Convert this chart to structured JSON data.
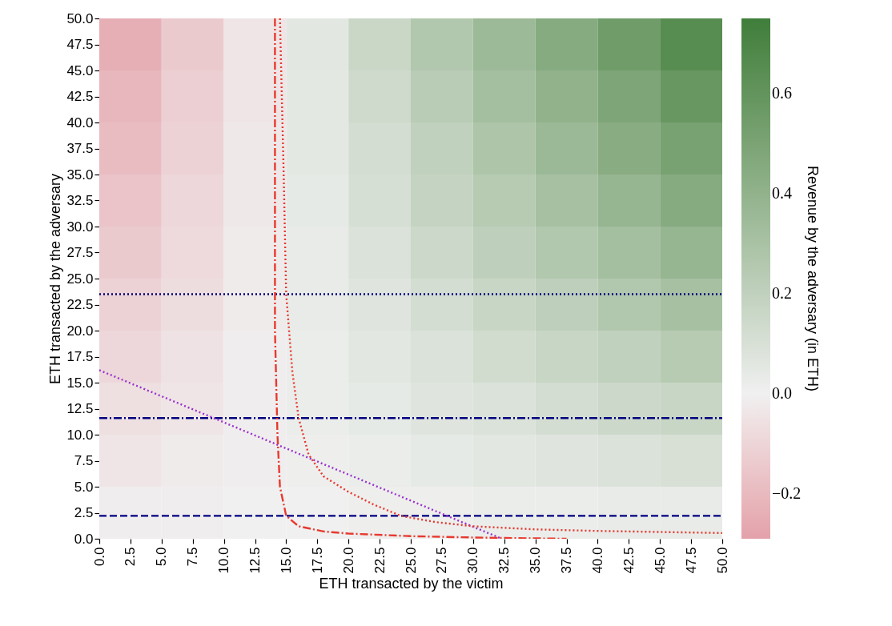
{
  "chart_data": {
    "type": "heatmap",
    "xlabel": "ETH transacted by the victim",
    "ylabel": "ETH transacted by the adversary",
    "clabel": "Revenue by the adversary (in ETH)",
    "xlim": [
      0,
      50
    ],
    "ylim": [
      0,
      50
    ],
    "xticks": [
      {
        "value": 0,
        "label": "0.0"
      },
      {
        "value": 2.5,
        "label": "2.5"
      },
      {
        "value": 5,
        "label": "5.0"
      },
      {
        "value": 7.5,
        "label": "7.5"
      },
      {
        "value": 10,
        "label": "10.0"
      },
      {
        "value": 12.5,
        "label": "12.5"
      },
      {
        "value": 15,
        "label": "15.0"
      },
      {
        "value": 17.5,
        "label": "17.5"
      },
      {
        "value": 20,
        "label": "20.0"
      },
      {
        "value": 22.5,
        "label": "22.5"
      },
      {
        "value": 25,
        "label": "25.0"
      },
      {
        "value": 27.5,
        "label": "27.5"
      },
      {
        "value": 30,
        "label": "30.0"
      },
      {
        "value": 32.5,
        "label": "32.5"
      },
      {
        "value": 35,
        "label": "35.0"
      },
      {
        "value": 37.5,
        "label": "37.5"
      },
      {
        "value": 40,
        "label": "40.0"
      },
      {
        "value": 42.5,
        "label": "42.5"
      },
      {
        "value": 45,
        "label": "45.0"
      },
      {
        "value": 47.5,
        "label": "47.5"
      },
      {
        "value": 50,
        "label": "50.0"
      }
    ],
    "yticks": [
      {
        "value": 0,
        "label": "0.0"
      },
      {
        "value": 2.5,
        "label": "2.5"
      },
      {
        "value": 5,
        "label": "5.0"
      },
      {
        "value": 7.5,
        "label": "7.5"
      },
      {
        "value": 10,
        "label": "10.0"
      },
      {
        "value": 12.5,
        "label": "12.5"
      },
      {
        "value": 15,
        "label": "15.0"
      },
      {
        "value": 17.5,
        "label": "17.5"
      },
      {
        "value": 20,
        "label": "20.0"
      },
      {
        "value": 22.5,
        "label": "22.5"
      },
      {
        "value": 25,
        "label": "25.0"
      },
      {
        "value": 27.5,
        "label": "27.5"
      },
      {
        "value": 30,
        "label": "30.0"
      },
      {
        "value": 32.5,
        "label": "32.5"
      },
      {
        "value": 35,
        "label": "35.0"
      },
      {
        "value": 37.5,
        "label": "37.5"
      },
      {
        "value": 40,
        "label": "40.0"
      },
      {
        "value": 42.5,
        "label": "42.5"
      },
      {
        "value": 45,
        "label": "45.0"
      },
      {
        "value": 47.5,
        "label": "47.5"
      },
      {
        "value": 50,
        "label": "50.0"
      }
    ],
    "clim": [
      -0.29,
      0.75
    ],
    "cticks": [
      {
        "value": -0.2,
        "label": "−0.2"
      },
      {
        "value": 0,
        "label": "0.0"
      },
      {
        "value": 0.2,
        "label": "0.2"
      },
      {
        "value": 0.4,
        "label": "0.4"
      },
      {
        "value": 0.6,
        "label": "0.6"
      }
    ],
    "colors": [
      "#e3a1aa",
      "#f0f0f0",
      "#3f7e3b"
    ],
    "x": [
      2.5,
      7.5,
      12.5,
      17.5,
      22.5,
      27.5,
      32.5,
      37.5,
      42.5,
      47.5
    ],
    "y": [
      47.5,
      42.5,
      37.5,
      32.5,
      27.5,
      22.5,
      17.5,
      12.5,
      7.5,
      2.5
    ],
    "cells": [
      [
        -0.24,
        -0.14,
        -0.04,
        0.06,
        0.16,
        0.26,
        0.35,
        0.45,
        0.55,
        0.65
      ],
      [
        -0.21,
        -0.12,
        -0.04,
        0.05,
        0.14,
        0.23,
        0.32,
        0.4,
        0.49,
        0.58
      ],
      [
        -0.19,
        -0.11,
        -0.03,
        0.05,
        0.12,
        0.2,
        0.28,
        0.36,
        0.44,
        0.51
      ],
      [
        -0.16,
        -0.09,
        -0.03,
        0.04,
        0.11,
        0.18,
        0.24,
        0.31,
        0.38,
        0.45
      ],
      [
        -0.14,
        -0.08,
        -0.02,
        0.03,
        0.09,
        0.15,
        0.21,
        0.26,
        0.32,
        0.38
      ],
      [
        -0.11,
        -0.07,
        -0.02,
        0.03,
        0.07,
        0.12,
        0.17,
        0.21,
        0.26,
        0.31
      ],
      [
        -0.09,
        -0.05,
        -0.01,
        0.02,
        0.06,
        0.09,
        0.13,
        0.17,
        0.2,
        0.24
      ],
      [
        -0.06,
        -0.04,
        -0.01,
        0.02,
        0.04,
        0.07,
        0.09,
        0.12,
        0.15,
        0.17
      ],
      [
        -0.04,
        -0.02,
        -0.01,
        0.01,
        0.02,
        0.04,
        0.06,
        0.07,
        0.09,
        0.1
      ],
      [
        -0.01,
        -0.01,
        0.0,
        0.0,
        0.01,
        0.01,
        0.02,
        0.02,
        0.03,
        0.03
      ]
    ],
    "series": [
      {
        "type": "line",
        "color": "#000080",
        "line_style": "dotted",
        "x": [
          0,
          50
        ],
        "values": [
          23.5,
          23.5
        ]
      },
      {
        "type": "line",
        "color": "#000080",
        "line_style": "dashdot",
        "x": [
          0,
          50
        ],
        "values": [
          11.6,
          11.6
        ]
      },
      {
        "type": "line",
        "color": "#000080",
        "line_style": "dashed",
        "x": [
          0,
          50
        ],
        "values": [
          2.2,
          2.2
        ]
      },
      {
        "type": "line",
        "color": "#9932cc",
        "line_style": "dotted",
        "x": [
          0,
          32.3
        ],
        "values": [
          16.2,
          0
        ]
      },
      {
        "type": "line",
        "color": "#e8392e",
        "line_style": "dotted",
        "x": [
          14.5,
          14.8,
          15.0,
          15.5,
          16.0,
          16.8,
          18,
          20,
          22,
          24.2,
          27,
          30,
          35,
          40,
          45,
          50
        ],
        "values": [
          50,
          35,
          23.5,
          16,
          11.6,
          8.1,
          6,
          4.5,
          3.3,
          2.2,
          1.6,
          1.2,
          0.9,
          0.75,
          0.65,
          0.55
        ]
      },
      {
        "type": "line",
        "color": "#e8392e",
        "line_style": "dashdot",
        "x": [
          14.1,
          14.1,
          14.3,
          14.5,
          15.0,
          16,
          18,
          20,
          25,
          30,
          37.5
        ],
        "values": [
          50,
          20,
          10,
          5,
          2.2,
          1.2,
          0.7,
          0.5,
          0.25,
          0.12,
          0.0
        ]
      }
    ]
  }
}
